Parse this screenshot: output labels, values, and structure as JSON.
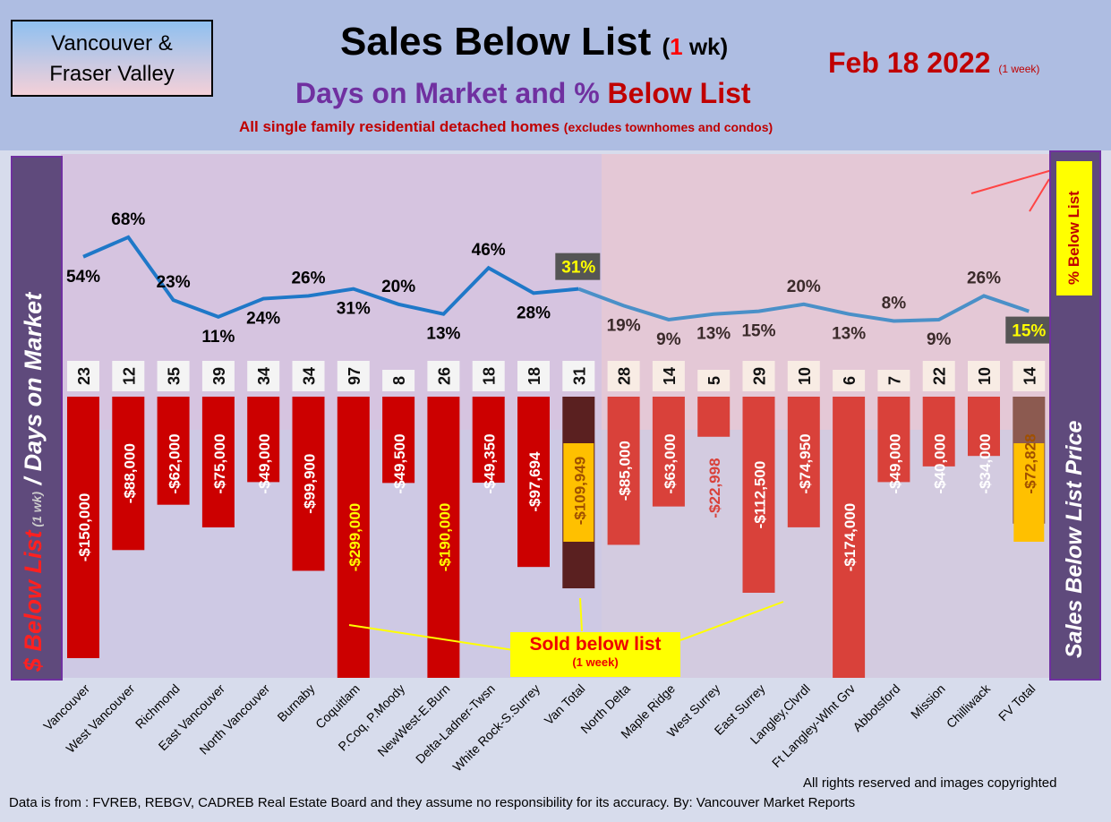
{
  "header": {
    "region_line1": "Vancouver &",
    "region_line2": "Fraser Valley",
    "title": "Sales Below List",
    "title_paren_open": "(",
    "title_num": "1",
    "title_unit": " wk)",
    "date": "Feb 18  2022",
    "date_note": "(1 week)",
    "subtitle_a": "Days on Market and % ",
    "subtitle_b": "Below List",
    "note": "All single family residential detached homes ",
    "note_small": "(excludes townhomes and condos)"
  },
  "left_axis": {
    "a": "$ Below List",
    "b": " (1 wk)",
    "c": " / Days on Market"
  },
  "right_axis": {
    "label": "Sales Below List Price",
    "tag": "% Below List"
  },
  "annotation": {
    "line1": "Sold below list",
    "line2": "(1 week)"
  },
  "footer": {
    "rights": "All rights reserved and  images copyrighted",
    "source": "Data is from : FVREB, REBGV, CADREB Real Estate Board and they assume no responsibility for its accuracy. By: Vancouver Market Reports"
  },
  "colors": {
    "van_bar": "#cc0000",
    "fv_bar": "#d9413a",
    "van_total": "#5a2020",
    "fv_total": "#8c5a50",
    "line": "#1f78c8",
    "highlight": "#ffc000"
  },
  "chart_data": {
    "type": "bar+line",
    "categories": [
      "Vancouver",
      "West Vancouver",
      "Richmond",
      "East Vancouver",
      "North Vancouver",
      "Burnaby",
      "Coquitlam",
      "P.Coq, P.Moody",
      "NewWest-E.Burn",
      "Delta-Ladner-Twsn",
      "White Rock-S.Surrey",
      "Van Total",
      "North Delta",
      "Maple Ridge",
      "West Surrey",
      "East Surrey",
      "Langley,Clvrdl",
      "Ft Langley-Wlnt Grv",
      "Abbotsford",
      "Mission",
      "Chilliwack",
      "FV Total"
    ],
    "series": [
      {
        "name": "$ Below List",
        "values": [
          -150000,
          -88000,
          -62000,
          -75000,
          -49000,
          -99900,
          -299000,
          -49500,
          -190000,
          -49350,
          -97694,
          -109949,
          -85000,
          -63000,
          -22998,
          -112500,
          -74950,
          -174000,
          -49000,
          -40000,
          -34000,
          -72828
        ],
        "labels": [
          "-$150,000",
          "-$88,000",
          "-$62,000",
          "-$75,000",
          "-$49,000",
          "-$99,900",
          "-$299,000",
          "-$49,500",
          "-$190,000",
          "-$49,350",
          "-$97,694",
          "-$109,949",
          "-$85,000",
          "-$63,000",
          "-$22,998",
          "-$112,500",
          "-$74,950",
          "-$174,000",
          "-$49,000",
          "-$40,000",
          "-$34,000",
          "-$72,828"
        ]
      },
      {
        "name": "Days on Market",
        "values": [
          23,
          12,
          35,
          39,
          34,
          34,
          97,
          8,
          26,
          18,
          18,
          31,
          28,
          14,
          5,
          29,
          10,
          6,
          7,
          22,
          10,
          14
        ]
      },
      {
        "name": "% Below List",
        "values": [
          54,
          68,
          23,
          11,
          24,
          26,
          31,
          20,
          13,
          46,
          28,
          31,
          19,
          9,
          13,
          15,
          20,
          13,
          8,
          9,
          26,
          15
        ]
      }
    ]
  }
}
